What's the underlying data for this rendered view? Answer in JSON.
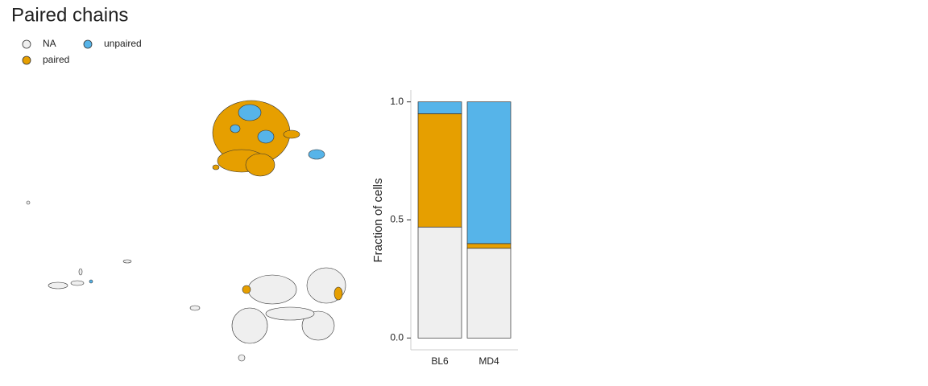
{
  "chart_data": {
    "type": "bar",
    "stacked": true,
    "title": "Paired chains",
    "categories": [
      "BL6",
      "MD4"
    ],
    "series": [
      {
        "name": "NA",
        "color": "#efefef",
        "values": [
          0.47,
          0.38
        ]
      },
      {
        "name": "paired",
        "color": "#e69f00",
        "values": [
          0.48,
          0.02
        ]
      },
      {
        "name": "unpaired",
        "color": "#56b4e9",
        "values": [
          0.05,
          0.6
        ]
      }
    ],
    "ylabel": "Fraction of cells",
    "ylim": [
      -0.05,
      1.05
    ],
    "yticks": [
      {
        "value": 0,
        "label": "0.0"
      },
      {
        "value": 0.5,
        "label": "0.5"
      },
      {
        "value": 1,
        "label": "1.0"
      }
    ]
  }
}
